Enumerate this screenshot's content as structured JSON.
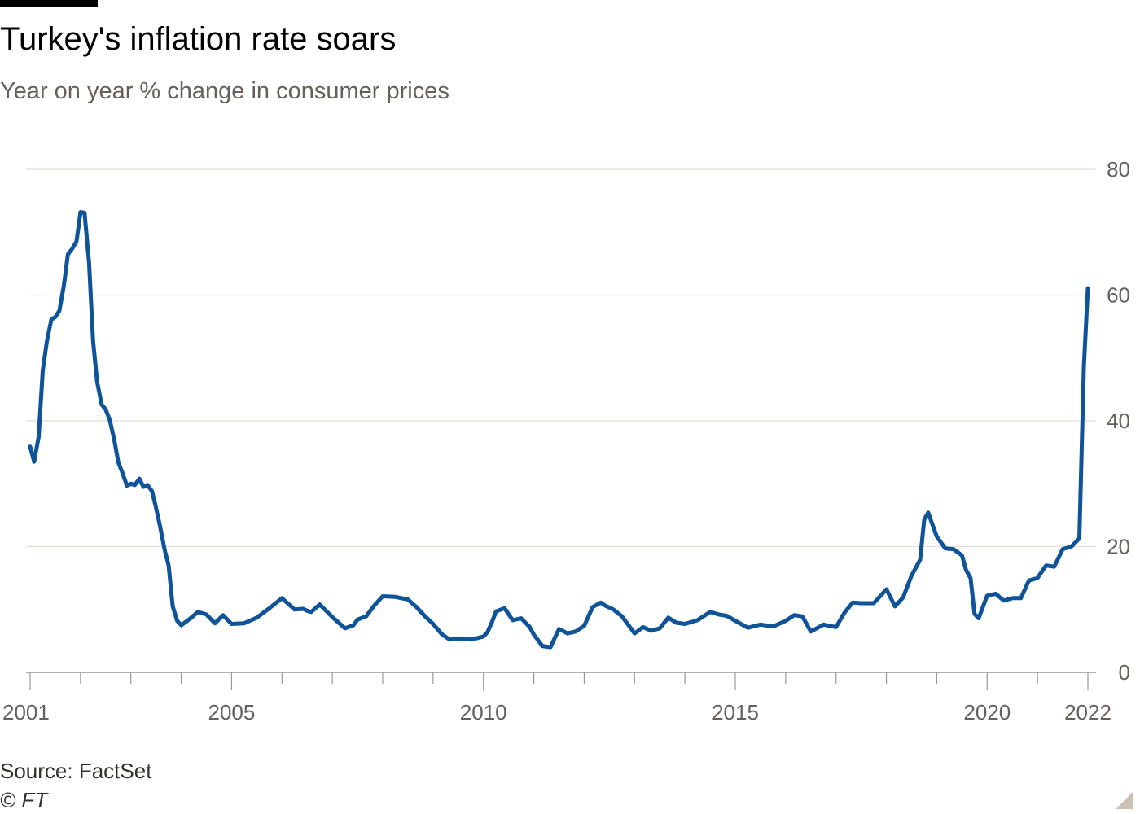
{
  "header": {
    "title": "Turkey's inflation rate soars",
    "subtitle": "Year on year % change in consumer prices"
  },
  "footer": {
    "source": "Source: FactSet",
    "copyright": "© FT"
  },
  "colors": {
    "line": "#0f5499",
    "grid": "#e2dedb",
    "axis": "#999999",
    "text": "#66605c"
  },
  "chart_data": {
    "type": "line",
    "title": "Turkey's inflation rate soars",
    "subtitle": "Year on year % change in consumer prices",
    "xlabel": "",
    "ylabel": "",
    "ylim": [
      0,
      80
    ],
    "xlim": [
      2001.0,
      2022.0
    ],
    "y_ticks": [
      0,
      20,
      40,
      60,
      80
    ],
    "y_axis_position": "right",
    "x_ticks": [
      2001,
      2005,
      2010,
      2015,
      2020,
      2022
    ],
    "grid": true,
    "legend": "none",
    "series": [
      {
        "x": [
          2001.0,
          2001.08,
          2001.17,
          2001.25,
          2001.33,
          2001.42,
          2001.5,
          2001.58,
          2001.67,
          2001.75,
          2001.83,
          2001.92,
          2002.0,
          2002.08,
          2002.17,
          2002.25,
          2002.33,
          2002.42,
          2002.5,
          2002.58,
          2002.67,
          2002.75,
          2002.83,
          2002.92,
          2003.0,
          2003.08,
          2003.17,
          2003.25,
          2003.33,
          2003.42,
          2003.5,
          2003.58,
          2003.67,
          2003.75,
          2003.83,
          2003.92,
          2004.0,
          2004.17,
          2004.33,
          2004.5,
          2004.67,
          2004.83,
          2005.0,
          2005.25,
          2005.5,
          2005.75,
          2006.0,
          2006.25,
          2006.42,
          2006.5,
          2006.58,
          2006.75,
          2007.0,
          2007.25,
          2007.42,
          2007.5,
          2007.67,
          2007.83,
          2008.0,
          2008.25,
          2008.5,
          2008.67,
          2008.83,
          2009.0,
          2009.17,
          2009.33,
          2009.5,
          2009.75,
          2010.0,
          2010.08,
          2010.17,
          2010.25,
          2010.42,
          2010.58,
          2010.75,
          2010.92,
          2011.0,
          2011.17,
          2011.33,
          2011.5,
          2011.67,
          2011.83,
          2012.0,
          2012.17,
          2012.33,
          2012.42,
          2012.58,
          2012.75,
          2013.0,
          2013.17,
          2013.33,
          2013.5,
          2013.67,
          2013.83,
          2014.0,
          2014.25,
          2014.5,
          2014.67,
          2014.83,
          2015.0,
          2015.25,
          2015.5,
          2015.75,
          2016.0,
          2016.17,
          2016.33,
          2016.5,
          2016.75,
          2017.0,
          2017.17,
          2017.33,
          2017.5,
          2017.75,
          2018.0,
          2018.17,
          2018.33,
          2018.5,
          2018.67,
          2018.75,
          2018.83,
          2019.0,
          2019.17,
          2019.33,
          2019.5,
          2019.58,
          2019.67,
          2019.75,
          2019.83,
          2020.0,
          2020.17,
          2020.33,
          2020.5,
          2020.67,
          2020.83,
          2021.0,
          2021.17,
          2021.33,
          2021.5,
          2021.67,
          2021.83,
          2021.92,
          2022.0
        ],
        "y": [
          35.9,
          33.5,
          37.5,
          48.0,
          52.5,
          56.1,
          56.5,
          57.5,
          61.5,
          66.5,
          67.3,
          68.5,
          73.2,
          73.1,
          65.1,
          52.7,
          46.2,
          42.6,
          41.8,
          40.2,
          37.0,
          33.4,
          31.8,
          29.7,
          30.0,
          29.8,
          30.8,
          29.5,
          29.8,
          28.8,
          26.2,
          23.2,
          19.5,
          17.0,
          10.5,
          8.2,
          7.5,
          8.5,
          9.6,
          9.2,
          7.8,
          9.1,
          7.7,
          7.8,
          8.7,
          10.2,
          11.8,
          10.0,
          10.1,
          9.8,
          9.6,
          10.8,
          8.8,
          7.0,
          7.5,
          8.4,
          8.9,
          10.6,
          12.1,
          12.0,
          11.6,
          10.4,
          9.0,
          7.7,
          6.1,
          5.2,
          5.4,
          5.2,
          5.7,
          6.4,
          8.0,
          9.7,
          10.2,
          8.3,
          8.6,
          7.2,
          6.0,
          4.2,
          4.0,
          6.9,
          6.2,
          6.5,
          7.4,
          10.4,
          11.1,
          10.6,
          10.0,
          8.9,
          6.2,
          7.2,
          6.6,
          7.0,
          8.7,
          7.9,
          7.7,
          8.3,
          9.6,
          9.2,
          9.0,
          8.2,
          7.1,
          7.6,
          7.3,
          8.2,
          9.1,
          8.9,
          6.5,
          7.6,
          7.2,
          9.5,
          11.1,
          11.0,
          11.0,
          13.2,
          10.5,
          11.9,
          15.4,
          17.9,
          24.3,
          25.4,
          21.6,
          19.7,
          19.6,
          18.6,
          16.3,
          15.0,
          9.3,
          8.6,
          12.2,
          12.5,
          11.4,
          11.8,
          11.8,
          14.6,
          15.0,
          17.0,
          16.8,
          19.6,
          20.0,
          21.3,
          48.7,
          61.1
        ]
      }
    ]
  }
}
